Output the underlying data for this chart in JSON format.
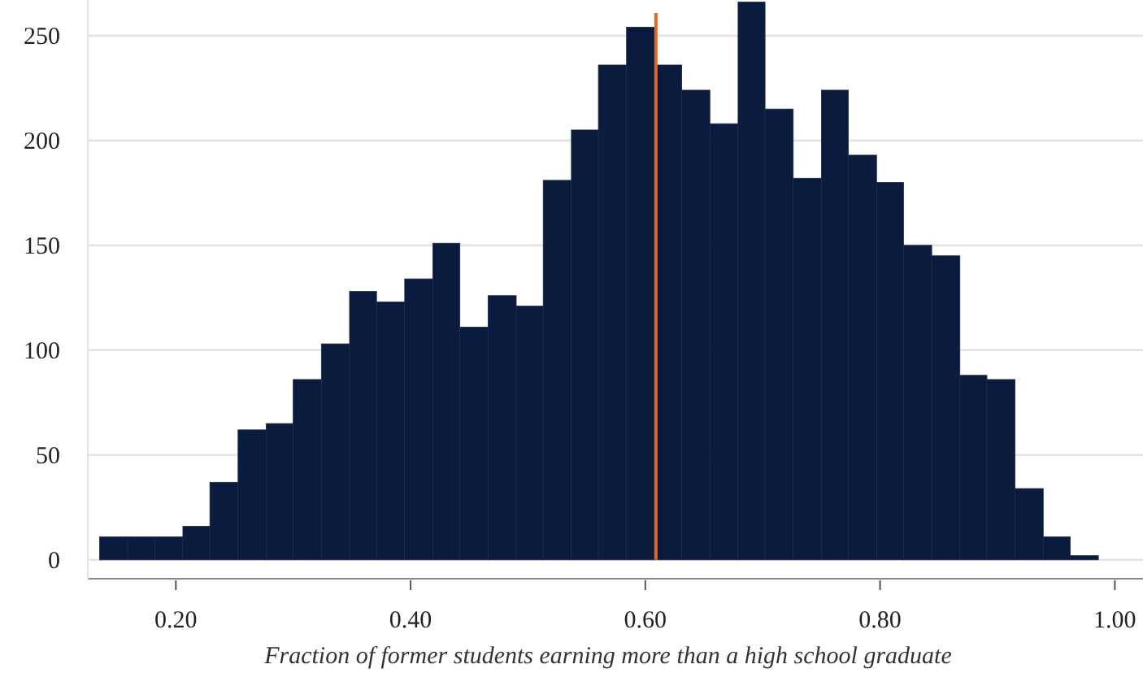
{
  "chart_data": {
    "type": "histogram",
    "xlabel": "Fraction of former students earning more than a high school graduate",
    "bins": [
      0.135,
      0.159,
      0.182,
      0.206,
      0.229,
      0.253,
      0.277,
      0.3,
      0.324,
      0.348,
      0.371,
      0.395,
      0.419,
      0.442,
      0.466,
      0.49,
      0.513,
      0.537,
      0.56,
      0.584,
      0.608,
      0.631,
      0.655,
      0.679,
      0.702,
      0.726,
      0.75,
      0.773,
      0.797,
      0.82,
      0.844,
      0.868,
      0.891,
      0.915,
      0.939,
      0.962,
      0.986
    ],
    "values": [
      11,
      11,
      11,
      16,
      37,
      62,
      65,
      86,
      103,
      128,
      123,
      134,
      151,
      111,
      126,
      121,
      181,
      205,
      236,
      254,
      236,
      224,
      208,
      266,
      215,
      182,
      224,
      193,
      180,
      150,
      145,
      88,
      86,
      34,
      11,
      2
    ],
    "color": "#0b1b3d",
    "xlim": [
      0.125,
      1.024
    ],
    "ylim": [
      -9,
      267
    ],
    "xticks": [
      {
        "value": 0.2,
        "label": "0.20"
      },
      {
        "value": 0.4,
        "label": "0.40"
      },
      {
        "value": 0.6,
        "label": "0.60"
      },
      {
        "value": 0.8,
        "label": "0.80"
      },
      {
        "value": 1.0,
        "label": "1.00"
      }
    ],
    "yticks": [
      0,
      50,
      100,
      150,
      200,
      250
    ],
    "grid": "y",
    "ref_lines": [
      {
        "axis": "x",
        "value": 0.609,
        "color": "#e0662a"
      }
    ]
  }
}
